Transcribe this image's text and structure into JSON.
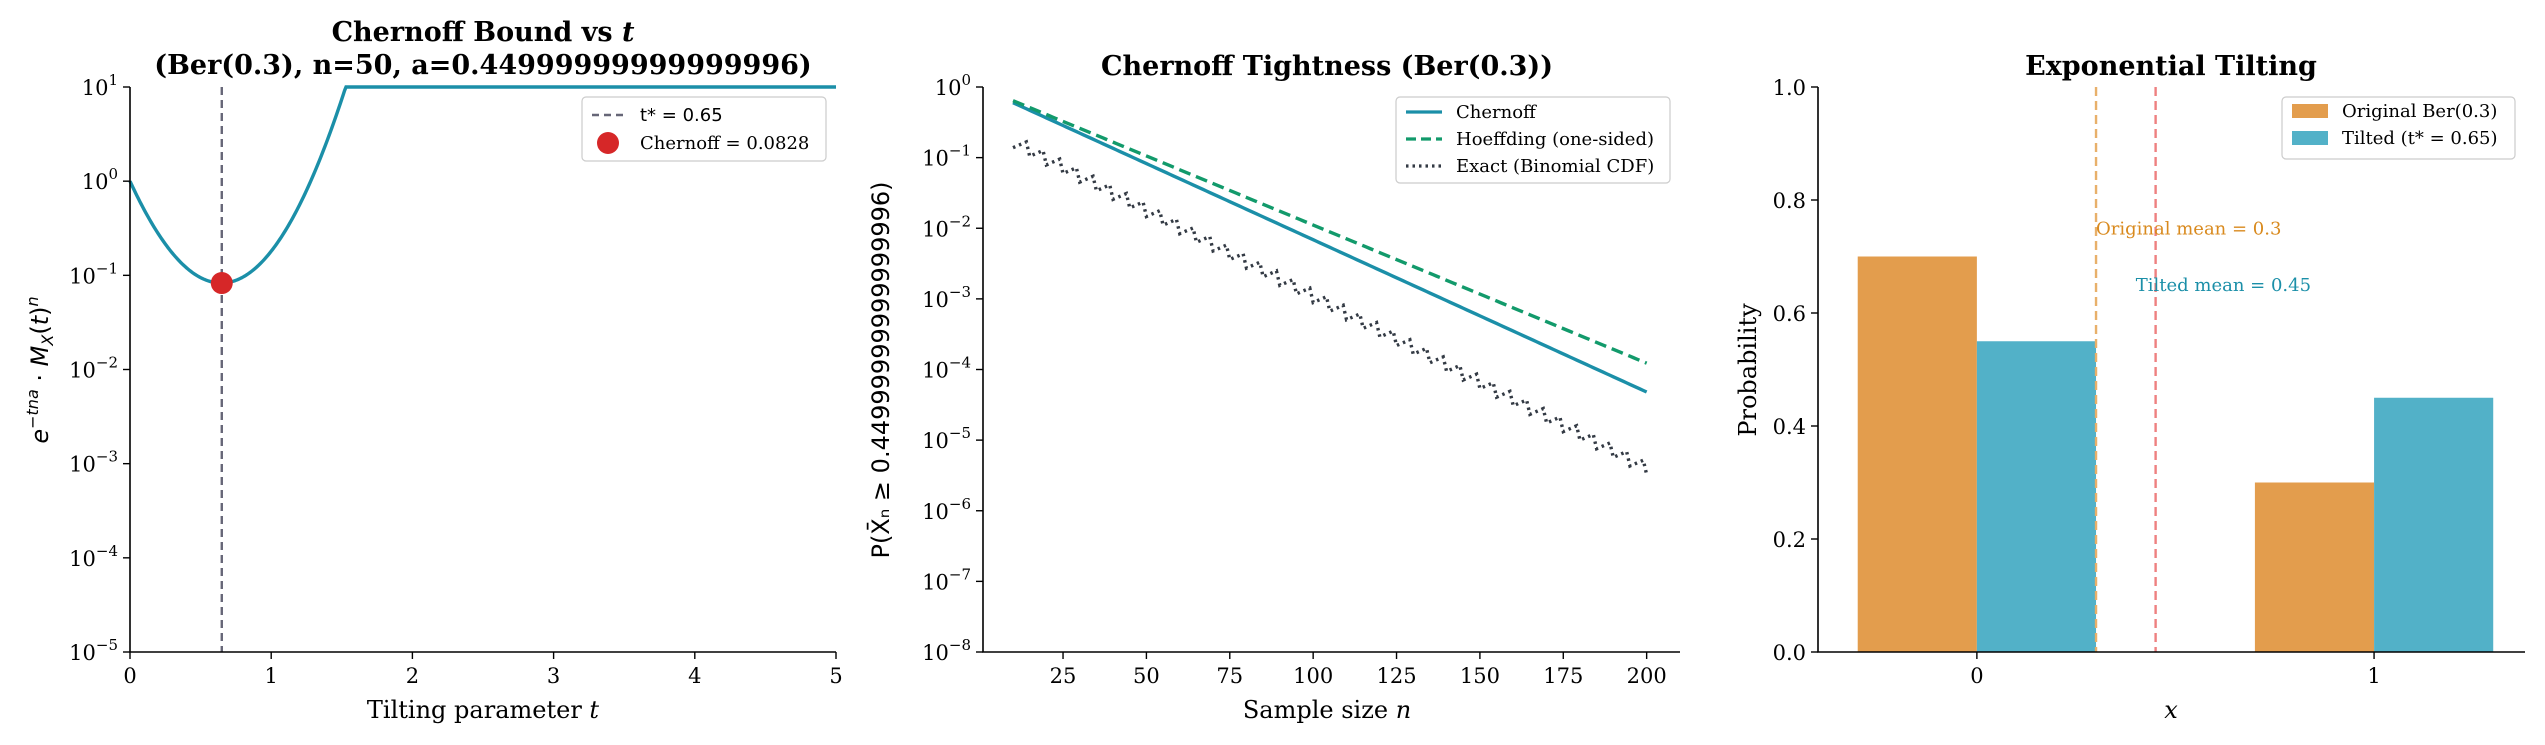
{
  "colors": {
    "chernoff": "#1b8fa8",
    "hoeffding": "#129a6b",
    "exact": "#333a44",
    "threshold": "#666677",
    "point": "#d62728",
    "original": "#e39d4d",
    "tilted": "#52b1c8",
    "orig_mean_line": "#e8b06a",
    "tilt_mean_line": "#ee8080",
    "orig_text": "#d98a1e",
    "tilt_text": "#1b8fa8"
  },
  "chart_data": [
    {
      "type": "line",
      "title_line1": "Chernoff Bound vs ",
      "title_line1_var": "t",
      "title_line2": "(Ber(0.3), n=50, a=0.44999999999999996)",
      "xlabel": "Tilting parameter ",
      "xlabel_var": "t",
      "ylabel": "e^{-tna} · M_X(t)^n",
      "yscale": "log",
      "xlim": [
        0,
        5
      ],
      "ylim_exp": [
        -5,
        1
      ],
      "xticks": [
        "0",
        "1",
        "2",
        "3",
        "4",
        "5"
      ],
      "yticks_exp": [
        "-5",
        "-4",
        "-3",
        "-2",
        "-1",
        "0",
        "1"
      ],
      "series": [
        {
          "kind": "curve",
          "p": 0.3,
          "n": 50,
          "a": 0.45,
          "t_range": [
            0,
            5
          ],
          "cap": 10
        }
      ],
      "threshold_t": 0.65,
      "point": {
        "t": 0.65,
        "value": 0.0828
      },
      "legend": {
        "threshold_label": "t* = 0.65",
        "point_label": "Chernoff = 0.0828"
      },
      "legend_position": "upper right"
    },
    {
      "type": "line",
      "title": "Chernoff Tightness (Ber(0.3))",
      "xlabel": "Sample size ",
      "xlabel_var": "n",
      "ylabel": "P(X̄ₙ ≥ 0.44999999999999996)",
      "yscale": "log",
      "xlim": [
        1,
        210
      ],
      "ylim_exp": [
        -8,
        0
      ],
      "xticks": [
        "25",
        "50",
        "75",
        "100",
        "125",
        "150",
        "175",
        "200"
      ],
      "yticks_exp": [
        "-8",
        "-7",
        "-6",
        "-5",
        "-4",
        "-3",
        "-2",
        "-1",
        "0"
      ],
      "n_range": [
        10,
        200
      ],
      "series": [
        {
          "name": "Chernoff",
          "style": "solid",
          "value_at_10": 0.6,
          "value_at_200": 4.8e-05
        },
        {
          "name": "Hoeffding (one-sided)",
          "style": "dashed",
          "value_at_10": 0.64,
          "value_at_200": 0.000123
        },
        {
          "name": "Exact (Binomial CDF)",
          "style": "dotted",
          "value_at_10": 0.17,
          "value_at_200": 4e-06
        }
      ],
      "legend_position": "upper right"
    },
    {
      "type": "bar",
      "title": "Exponential Tilting",
      "xlabel": "x",
      "ylabel": "Probability",
      "ylim": [
        0,
        1.0
      ],
      "categories": [
        "0",
        "1"
      ],
      "yticks": [
        "0.0",
        "0.2",
        "0.4",
        "0.6",
        "0.8",
        "1.0"
      ],
      "series": [
        {
          "name": "Original Ber(0.3)",
          "values": [
            0.7,
            0.3
          ]
        },
        {
          "name": "Tilted (t* = 0.65)",
          "values": [
            0.55,
            0.45
          ]
        }
      ],
      "mean_lines": [
        0.3,
        0.45
      ],
      "annotations": [
        {
          "text": "Original mean = 0.3",
          "x": 0.3,
          "y": 0.75
        },
        {
          "text": "Tilted mean = 0.45",
          "x": 0.4,
          "y": 0.65
        }
      ],
      "legend_position": "upper right"
    }
  ]
}
